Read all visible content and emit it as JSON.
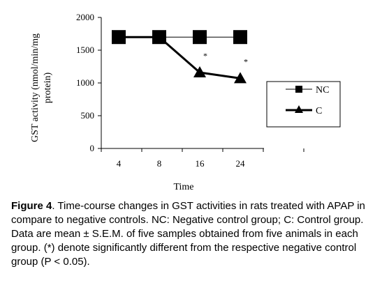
{
  "chart_data": {
    "type": "line",
    "categories": [
      "4",
      "8",
      "16",
      "24"
    ],
    "series": [
      {
        "name": "NC",
        "values": [
          1700,
          1700,
          1700,
          1700
        ],
        "marker": "square",
        "line_width": "thin"
      },
      {
        "name": "C",
        "values": [
          1700,
          1700,
          1160,
          1070
        ],
        "marker": "triangle",
        "line_width": "thick"
      }
    ],
    "xlabel": "Time",
    "ylabel": "GST activity (nmol/min/mg protein)",
    "ylabel_lines": [
      "GST activity (nmol/min/mg",
      "protein)"
    ],
    "ylim": [
      0,
      2000
    ],
    "yticks": [
      "0",
      "500",
      "1000",
      "1500",
      "2000"
    ],
    "ytick_values": [
      0,
      500,
      1000,
      1500,
      2000
    ],
    "annotations": [
      {
        "category": "16",
        "series": "C",
        "text": "*"
      },
      {
        "category": "24",
        "series": "C",
        "text": "*"
      }
    ],
    "grid": false,
    "legend_position": "right"
  },
  "caption": {
    "label": "Figure 4",
    "text": ". Time-course changes in GST activities in rats treated with APAP in compare to negative controls. NC: Negative control group; C: Control group. Data are mean ± S.E.M. of five samples obtained from five animals in each group. (*) denote significantly different from the respective negative control group (P < 0.05)."
  },
  "colors": {
    "line": "#000000",
    "background": "#ffffff"
  }
}
